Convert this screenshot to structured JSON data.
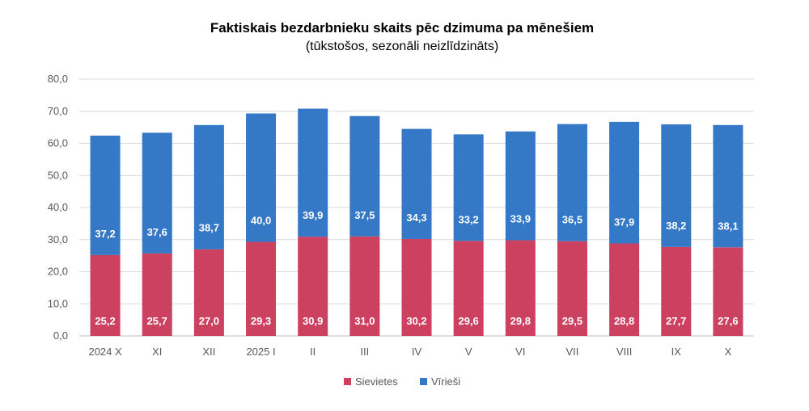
{
  "chart_data": {
    "type": "bar",
    "stacked": true,
    "title": "Faktiskais bezdarbnieku skaits pēc dzimuma pa mēnešiem",
    "subtitle": "(tūkstošos, sezonāli neizlīdzināts)",
    "categories": [
      "2024 X",
      "XI",
      "XII",
      "2025 I",
      "II",
      "III",
      "IV",
      "V",
      "VI",
      "VII",
      "VIII",
      "IX",
      "X"
    ],
    "series": [
      {
        "name": "Sievietes",
        "color": "#cc4060",
        "values": [
          25.2,
          25.7,
          27.0,
          29.3,
          30.9,
          31.0,
          30.2,
          29.6,
          29.8,
          29.5,
          28.8,
          27.7,
          27.6
        ],
        "labels": [
          "25,2",
          "25,7",
          "27,0",
          "29,3",
          "30,9",
          "31,0",
          "30,2",
          "29,6",
          "29,8",
          "29,5",
          "28,8",
          "27,7",
          "27,6"
        ]
      },
      {
        "name": "Vīrieši",
        "color": "#3478c6",
        "values": [
          37.2,
          37.6,
          38.7,
          40.0,
          39.9,
          37.5,
          34.3,
          33.2,
          33.9,
          36.5,
          37.9,
          38.2,
          38.1
        ],
        "labels": [
          "37,2",
          "37,6",
          "38,7",
          "40,0",
          "39,9",
          "37,5",
          "34,3",
          "33,2",
          "33,9",
          "36,5",
          "37,9",
          "38,2",
          "38,1"
        ]
      }
    ],
    "ylim": [
      0,
      80
    ],
    "yticks": [
      0,
      10,
      20,
      30,
      40,
      50,
      60,
      70,
      80
    ],
    "ytick_labels": [
      "0,0",
      "10,0",
      "20,0",
      "30,0",
      "40,0",
      "50,0",
      "60,0",
      "70,0",
      "80,0"
    ],
    "xlabel": "",
    "ylabel": "",
    "grid": true,
    "legend": "bottom-center"
  }
}
